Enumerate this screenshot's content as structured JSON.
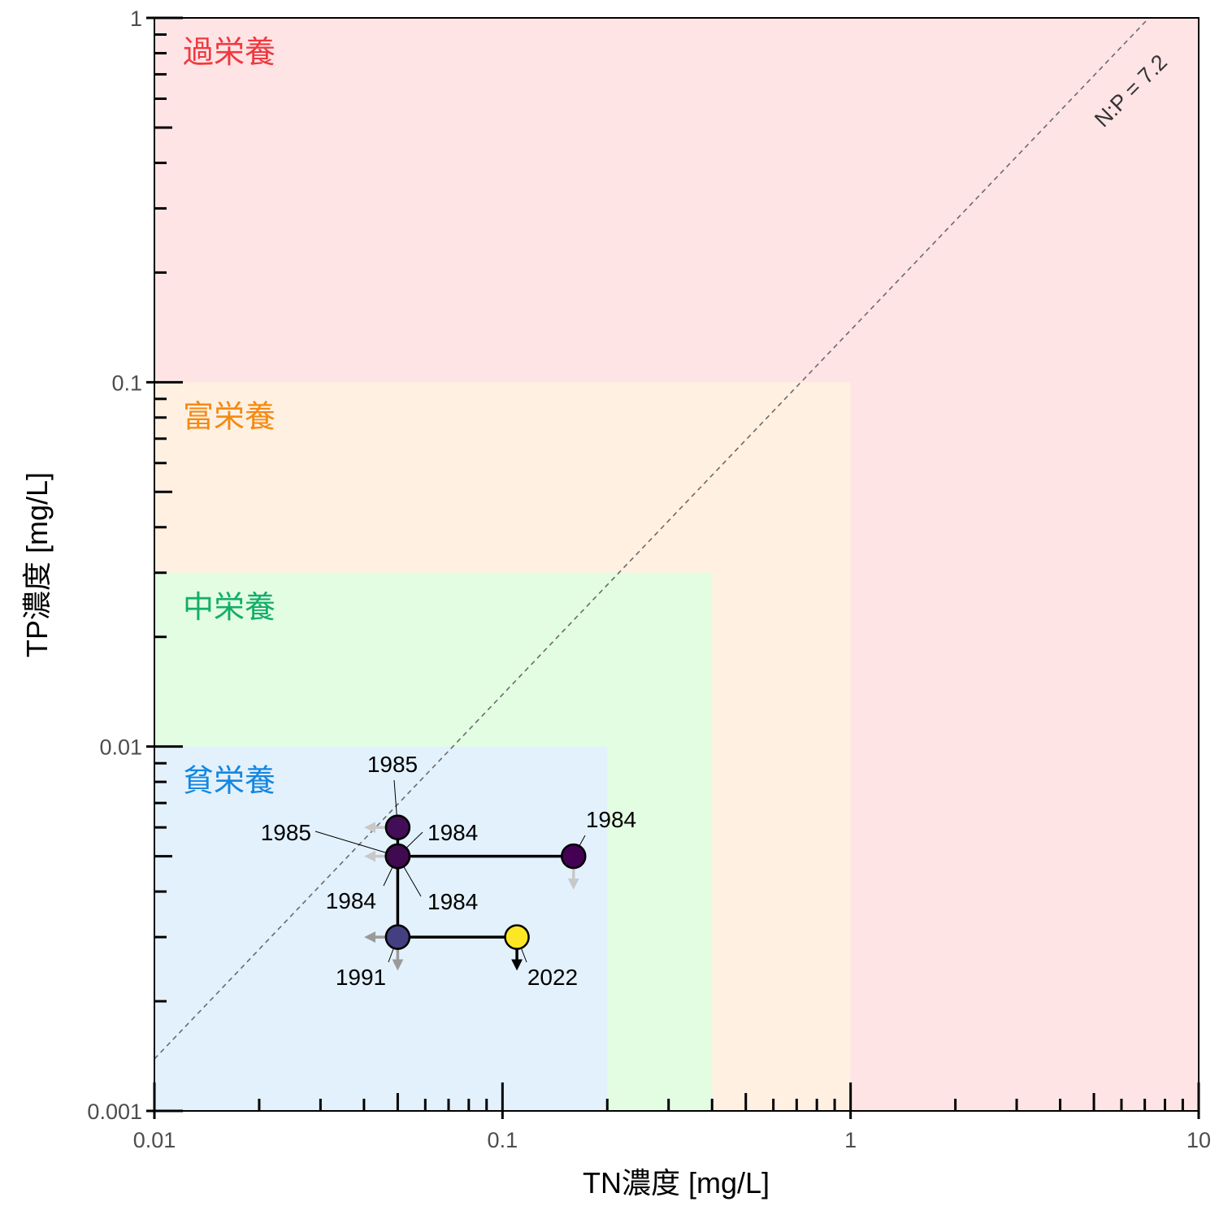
{
  "chart_data": {
    "type": "scatter",
    "xscale": "log",
    "yscale": "log",
    "xlim": [
      0.01,
      10
    ],
    "ylim": [
      0.001,
      1
    ],
    "xlabel": "TN濃度 [mg/L]",
    "ylabel": "TP濃度 [mg/L]",
    "x_ticks": [
      {
        "value": 0.01,
        "label": "0.01"
      },
      {
        "value": 0.1,
        "label": "0.1"
      },
      {
        "value": 1,
        "label": "1"
      },
      {
        "value": 10,
        "label": "10"
      }
    ],
    "y_ticks": [
      {
        "value": 0.001,
        "label": "0.001"
      },
      {
        "value": 0.01,
        "label": "0.01"
      },
      {
        "value": 0.1,
        "label": "0.1"
      },
      {
        "value": 1,
        "label": "1"
      }
    ],
    "zones": [
      {
        "name": "過栄養",
        "tn_max": 10,
        "tp_max": 1,
        "fill": "#ffe4e6",
        "text_color": "#f0393f"
      },
      {
        "name": "富栄養",
        "tn_max": 1,
        "tp_max": 0.1,
        "fill": "#fff0e2",
        "text_color": "#f58a12"
      },
      {
        "name": "中栄養",
        "tn_max": 0.4,
        "tp_max": 0.03,
        "fill": "#e3fde3",
        "text_color": "#14ad6b"
      },
      {
        "name": "貧栄養",
        "tn_max": 0.2,
        "tp_max": 0.01,
        "fill": "#e3f1fd",
        "text_color": "#1487e0"
      }
    ],
    "reference_line": {
      "label": "N:P = 7.2",
      "ratio": 7.2,
      "style": "dashed",
      "color": "#6a6a6a"
    },
    "points": [
      {
        "year": "1985",
        "tn": 0.05,
        "tp": 0.006,
        "color": "#430d58",
        "arrow_left": true,
        "arrow_down": false,
        "arrow_color": "#c8c8c8"
      },
      {
        "year": "1985",
        "tn": 0.05,
        "tp": 0.005,
        "color": "#440b54",
        "arrow_left": true,
        "arrow_down": false,
        "arrow_color": "#c8c8c8"
      },
      {
        "year": "1984",
        "tn": 0.05,
        "tp": 0.005,
        "color": "#3f0a50",
        "arrow_left": false,
        "arrow_down": false,
        "arrow_color": "#c8c8c8"
      },
      {
        "year": "1984",
        "tn": 0.05,
        "tp": 0.005,
        "color": "#3f0a50",
        "arrow_left": false,
        "arrow_down": false,
        "arrow_color": "#c8c8c8"
      },
      {
        "year": "1984",
        "tn": 0.05,
        "tp": 0.005,
        "color": "#3f0a50",
        "arrow_left": false,
        "arrow_down": false,
        "arrow_color": "#c8c8c8"
      },
      {
        "year": "1984",
        "tn": 0.16,
        "tp": 0.005,
        "color": "#440154",
        "arrow_left": false,
        "arrow_down": true,
        "arrow_color": "#c8c8c8"
      },
      {
        "year": "1991",
        "tn": 0.05,
        "tp": 0.003,
        "color": "#433f80",
        "arrow_left": true,
        "arrow_down": true,
        "arrow_color": "#9a9a9a"
      },
      {
        "year": "2022",
        "tn": 0.11,
        "tp": 0.003,
        "color": "#fde725",
        "arrow_left": false,
        "arrow_down": true,
        "arrow_color": "#000000"
      }
    ],
    "trajectory": [
      {
        "tn": 0.16,
        "tp": 0.005
      },
      {
        "tn": 0.05,
        "tp": 0.005
      },
      {
        "tn": 0.05,
        "tp": 0.006
      },
      {
        "tn": 0.05,
        "tp": 0.003
      },
      {
        "tn": 0.11,
        "tp": 0.003
      }
    ]
  }
}
